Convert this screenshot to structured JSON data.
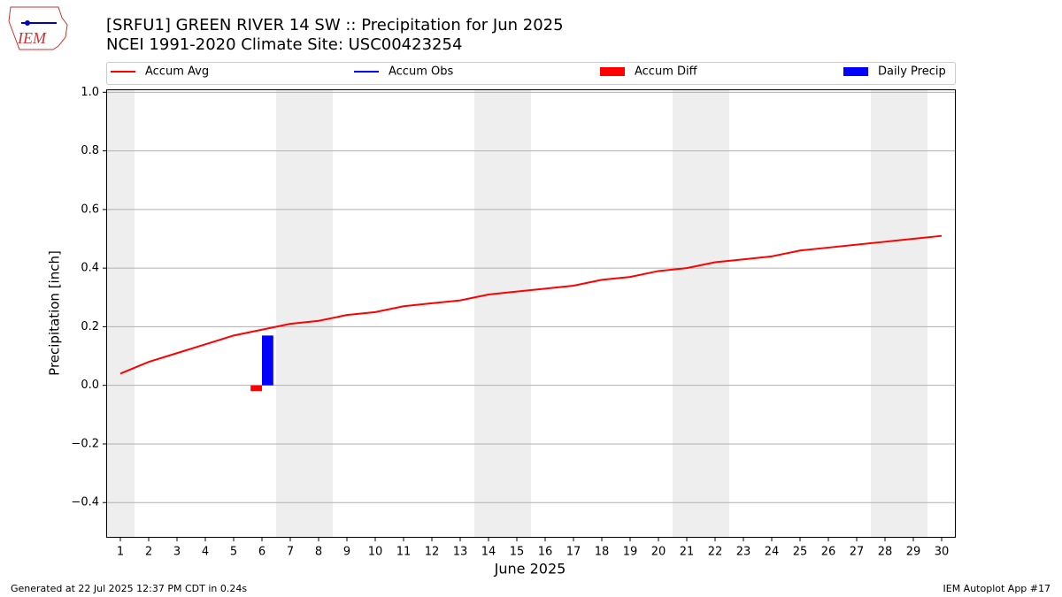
{
  "chart_data": {
    "type": "bar-line",
    "title": "[SRFU1] GREEN RIVER 14 SW :: Precipitation for Jun 2025",
    "subtitle": "NCEI 1991-2020 Climate Site: USC00423254",
    "xlabel": "June 2025",
    "ylabel": "Precipitation [inch]",
    "footer_left": "Generated at 22 Jul 2025 12:37 PM CDT in 0.24s",
    "footer_right": "IEM Autoplot App #17",
    "logo_text": "IEM",
    "x": [
      1,
      2,
      3,
      4,
      5,
      6,
      7,
      8,
      9,
      10,
      11,
      12,
      13,
      14,
      15,
      16,
      17,
      18,
      19,
      20,
      21,
      22,
      23,
      24,
      25,
      26,
      27,
      28,
      29,
      30
    ],
    "series": [
      {
        "name": "Accum Avg",
        "kind": "line",
        "color": "#ff0000",
        "values": [
          0.04,
          0.08,
          0.11,
          0.14,
          0.17,
          0.19,
          0.21,
          0.22,
          0.24,
          0.25,
          0.27,
          0.28,
          0.29,
          0.31,
          0.32,
          0.33,
          0.34,
          0.36,
          0.37,
          0.39,
          0.4,
          0.42,
          0.43,
          0.44,
          0.46,
          0.47,
          0.48,
          0.49,
          0.5,
          0.51
        ]
      },
      {
        "name": "Accum Obs",
        "kind": "line",
        "color": "#0000ff",
        "values": [
          null,
          null,
          null,
          null,
          null,
          null,
          null,
          null,
          null,
          null,
          null,
          null,
          null,
          null,
          null,
          null,
          null,
          null,
          null,
          null,
          null,
          null,
          null,
          null,
          null,
          null,
          null,
          null,
          null,
          null
        ]
      },
      {
        "name": "Accum Diff",
        "kind": "bar",
        "color": "#ff0000",
        "offset": -0.2,
        "values": [
          null,
          null,
          null,
          null,
          null,
          -0.02,
          null,
          null,
          null,
          null,
          null,
          null,
          null,
          null,
          null,
          null,
          null,
          null,
          null,
          null,
          null,
          null,
          null,
          null,
          null,
          null,
          null,
          null,
          null,
          null
        ]
      },
      {
        "name": "Daily Precip",
        "kind": "bar",
        "color": "#0000ff",
        "offset": 0.2,
        "values": [
          null,
          null,
          null,
          null,
          null,
          0.17,
          null,
          null,
          null,
          null,
          null,
          null,
          null,
          null,
          null,
          null,
          null,
          null,
          null,
          null,
          null,
          null,
          null,
          null,
          null,
          null,
          null,
          null,
          null,
          null
        ]
      }
    ],
    "shaded_days": [
      1,
      7,
      8,
      14,
      15,
      21,
      22,
      28,
      29
    ],
    "xlim": [
      0.5,
      30.5
    ],
    "xticks": [
      1,
      2,
      3,
      4,
      5,
      6,
      7,
      8,
      9,
      10,
      11,
      12,
      13,
      14,
      15,
      16,
      17,
      18,
      19,
      20,
      21,
      22,
      23,
      24,
      25,
      26,
      27,
      28,
      29,
      30
    ],
    "ylim": [
      -0.52,
      1.01
    ],
    "yticks": [
      -0.4,
      -0.2,
      0.0,
      0.2,
      0.4,
      0.6,
      0.8,
      1.0
    ],
    "grid": true
  }
}
